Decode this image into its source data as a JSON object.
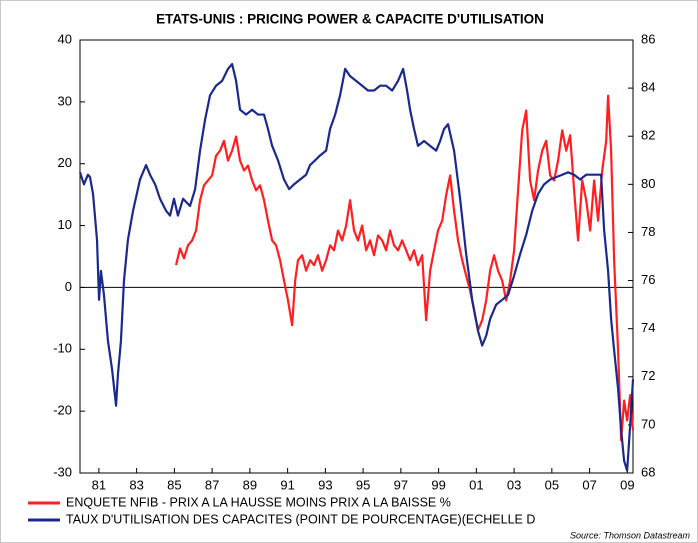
{
  "chart_data": {
    "type": "line",
    "title": "ETATS-UNIS : PRICING POWER & CAPACITE D'UTILISATION",
    "source": "Source: Thomson Datastream",
    "xlim": [
      1980,
      2009.3
    ],
    "xticks": [
      {
        "value": 1981,
        "label": "81"
      },
      {
        "value": 1983,
        "label": "83"
      },
      {
        "value": 1985,
        "label": "85"
      },
      {
        "value": 1987,
        "label": "87"
      },
      {
        "value": 1989,
        "label": "89"
      },
      {
        "value": 1991,
        "label": "91"
      },
      {
        "value": 1993,
        "label": "93"
      },
      {
        "value": 1995,
        "label": "95"
      },
      {
        "value": 1997,
        "label": "97"
      },
      {
        "value": 1999,
        "label": "99"
      },
      {
        "value": 2001,
        "label": "01"
      },
      {
        "value": 2003,
        "label": "03"
      },
      {
        "value": 2005,
        "label": "05"
      },
      {
        "value": 2007,
        "label": "07"
      },
      {
        "value": 2009,
        "label": "09"
      }
    ],
    "ylim": [
      -30,
      40
    ],
    "yticks": [
      -30,
      -20,
      -10,
      0,
      10,
      20,
      30,
      40
    ],
    "y2lim": [
      68,
      86
    ],
    "y2ticks": [
      68,
      70,
      72,
      74,
      76,
      78,
      80,
      82,
      84,
      86
    ],
    "reference_line": 0,
    "legend": "bottom",
    "series": [
      {
        "name": "ENQUETE NFIB  -  PRIX A LA HAUSSE MOINS PRIX A LA BAISSE %",
        "color": "#ff1f1f",
        "x": [
          1985.09,
          1985.3,
          1985.51,
          1985.72,
          1985.94,
          1986.15,
          1986.36,
          1986.57,
          1986.78,
          1987,
          1987.21,
          1987.42,
          1987.63,
          1987.84,
          1988.06,
          1988.27,
          1988.48,
          1988.69,
          1988.9,
          1989.12,
          1989.33,
          1989.54,
          1989.75,
          1989.96,
          1990.18,
          1990.39,
          1990.6,
          1990.81,
          1991.02,
          1991.24,
          1991.4,
          1991.55,
          1991.77,
          1991.98,
          1992.19,
          1992.4,
          1992.61,
          1992.83,
          1993.04,
          1993.25,
          1993.46,
          1993.67,
          1993.89,
          1994.1,
          1994.31,
          1994.52,
          1994.73,
          1994.95,
          1995.16,
          1995.37,
          1995.58,
          1995.79,
          1996.01,
          1996.22,
          1996.43,
          1996.64,
          1996.85,
          1997.07,
          1997.28,
          1997.49,
          1997.7,
          1997.91,
          1998.13,
          1998.34,
          1998.55,
          1998.76,
          1998.97,
          1999.19,
          1999.4,
          1999.61,
          1999.82,
          2000.03,
          2000.25,
          2000.46,
          2000.67,
          2000.88,
          2001.09,
          2001.31,
          2001.52,
          2001.73,
          2001.94,
          2002.15,
          2002.37,
          2002.58,
          2002.79,
          2003,
          2003.21,
          2003.43,
          2003.64,
          2003.85,
          2004.06,
          2004.27,
          2004.49,
          2004.7,
          2004.91,
          2005.12,
          2005.33,
          2005.55,
          2005.76,
          2005.97,
          2006.18,
          2006.39,
          2006.61,
          2006.82,
          2007.03,
          2007.24,
          2007.45,
          2007.67,
          2007.88,
          2007.98,
          2008.14,
          2008.3,
          2008.51,
          2008.67,
          2008.83,
          2008.99,
          2009.15,
          2009.3
        ],
        "values": [
          3.6,
          6.3,
          4.7,
          6.8,
          7.6,
          9.2,
          14.1,
          16.5,
          17.3,
          18.1,
          21.3,
          22.1,
          23.7,
          20.5,
          22.1,
          24.4,
          20.5,
          18.9,
          19.7,
          17.3,
          15.7,
          16.5,
          14.1,
          10.8,
          7.6,
          6.8,
          4.4,
          1.1,
          -2.1,
          -6.1,
          1.1,
          4.4,
          5.2,
          2.7,
          4.4,
          3.6,
          5.2,
          2.7,
          4.4,
          6.8,
          6.0,
          9.2,
          7.6,
          10.0,
          14.1,
          9.2,
          7.6,
          10.0,
          6.0,
          7.6,
          5.2,
          8.4,
          7.6,
          6.0,
          9.2,
          6.8,
          6.0,
          7.6,
          6.0,
          4.4,
          6.0,
          3.6,
          5.2,
          -5.3,
          2.7,
          6.0,
          9.2,
          10.8,
          14.9,
          18.1,
          12.4,
          7.6,
          4.4,
          1.9,
          -0.5,
          -3.7,
          -6.9,
          -5.3,
          -2.1,
          2.7,
          5.2,
          2.7,
          1.1,
          -2.1,
          1.1,
          6.0,
          15.7,
          25.4,
          28.6,
          17.3,
          14.1,
          18.9,
          22.1,
          23.7,
          18.1,
          17.3,
          20.5,
          25.4,
          22.1,
          24.6,
          15.7,
          7.6,
          17.3,
          14.1,
          9.2,
          17.3,
          10.8,
          18.9,
          23.7,
          31.0,
          22.1,
          4.4,
          -10.2,
          -24.7,
          -18.3,
          -21.5,
          -17.4,
          -23.1
        ]
      },
      {
        "name": "TAUX D'UTILISATION DES CAPACITES (POINT DE POURCENTAGE)(ECHELLE D",
        "color": "#1a2a8c",
        "axis": "y2",
        "x": [
          1980,
          1980.21,
          1980.42,
          1980.53,
          1980.69,
          1980.9,
          1981.01,
          1981.11,
          1981.27,
          1981.48,
          1981.7,
          1981.91,
          1982.01,
          1982.17,
          1982.33,
          1982.54,
          1982.81,
          1983.18,
          1983.5,
          1983.71,
          1983.98,
          1984.24,
          1984.56,
          1984.77,
          1984.98,
          1985.19,
          1985.46,
          1985.83,
          1986.1,
          1986.36,
          1986.63,
          1986.89,
          1987.21,
          1987.53,
          1987.84,
          1988.06,
          1988.27,
          1988.48,
          1988.8,
          1989.12,
          1989.43,
          1989.75,
          1989.96,
          1990.18,
          1990.49,
          1990.81,
          1991.08,
          1991.34,
          1991.66,
          1991.98,
          1992.19,
          1992.46,
          1992.72,
          1993.04,
          1993.25,
          1993.52,
          1993.78,
          1994.05,
          1994.31,
          1994.63,
          1994.95,
          1995.26,
          1995.58,
          1995.9,
          1996.22,
          1996.54,
          1996.85,
          1997.12,
          1997.33,
          1997.49,
          1997.7,
          1997.91,
          1998.23,
          1998.55,
          1998.87,
          1999.08,
          1999.29,
          1999.5,
          1999.82,
          2000.14,
          2000.46,
          2000.78,
          2001.09,
          2001.31,
          2001.52,
          2001.73,
          2002.05,
          2002.37,
          2002.68,
          2003,
          2003.32,
          2003.64,
          2003.96,
          2004.27,
          2004.59,
          2004.91,
          2005.23,
          2005.55,
          2005.86,
          2006.18,
          2006.5,
          2006.82,
          2007.14,
          2007.45,
          2007.61,
          2007.77,
          2007.98,
          2008.14,
          2008.3,
          2008.51,
          2008.67,
          2008.83,
          2008.99,
          2009.1,
          2009.2,
          2009.3
        ],
        "values": [
          80.5,
          80.0,
          80.4,
          80.3,
          79.6,
          77.7,
          75.2,
          76.4,
          75.4,
          73.5,
          72.3,
          70.8,
          72.1,
          73.5,
          76.0,
          77.7,
          78.9,
          80.2,
          80.8,
          80.4,
          80.0,
          79.4,
          78.9,
          78.7,
          79.4,
          78.7,
          79.4,
          79.1,
          79.8,
          81.4,
          82.7,
          83.7,
          84.1,
          84.3,
          84.8,
          85.0,
          84.3,
          83.1,
          82.9,
          83.1,
          82.9,
          82.9,
          82.3,
          81.6,
          81.0,
          80.2,
          79.8,
          80.0,
          80.2,
          80.4,
          80.8,
          81.0,
          81.2,
          81.4,
          82.3,
          82.9,
          83.7,
          84.8,
          84.5,
          84.3,
          84.1,
          83.9,
          83.9,
          84.1,
          84.1,
          83.9,
          84.3,
          84.8,
          83.9,
          83.1,
          82.3,
          81.6,
          81.8,
          81.6,
          81.4,
          81.8,
          82.3,
          82.5,
          81.4,
          79.4,
          77.1,
          75.2,
          73.9,
          73.3,
          73.7,
          74.4,
          75.0,
          75.2,
          75.4,
          76.2,
          77.1,
          77.9,
          78.9,
          79.6,
          80.0,
          80.2,
          80.3,
          80.4,
          80.5,
          80.4,
          80.2,
          80.4,
          80.4,
          80.4,
          80.4,
          78.1,
          76.4,
          74.4,
          73.1,
          71.5,
          69.8,
          68.5,
          68.1,
          69.4,
          70.6,
          71.9
        ]
      }
    ]
  }
}
